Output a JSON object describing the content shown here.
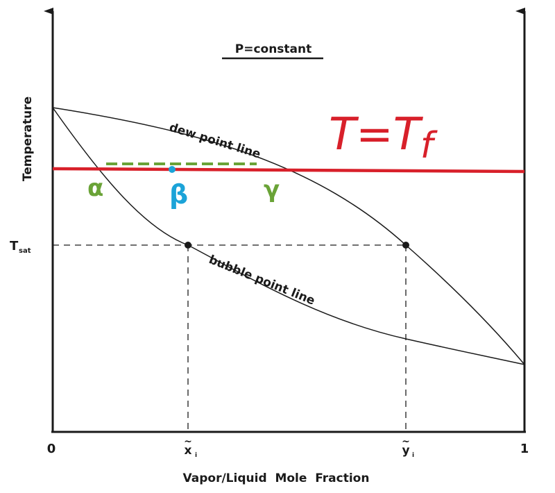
{
  "diagram": {
    "title": "P=constant",
    "y_axis_label": "Temperature",
    "x_axis_label": "Vapor/Liquid  Mole  Fraction",
    "y_tick_tsat": "T",
    "y_tick_tsat_sub": "sat",
    "x_tick_zero": "0",
    "x_tick_one": "1",
    "x_tick_x1": "x",
    "x_tick_y1": "y",
    "x_tick_sub": "i",
    "dew_label": "dew point line",
    "bubble_label": "bubble point line",
    "annotation_T": "T=T",
    "annotation_T_sub": "f",
    "alpha": "α",
    "beta": "β",
    "gamma": "γ",
    "colors": {
      "ink": "#1a1a1a",
      "red": "#d8202a",
      "green": "#6aa337",
      "cyan": "#1ba3d8"
    }
  }
}
